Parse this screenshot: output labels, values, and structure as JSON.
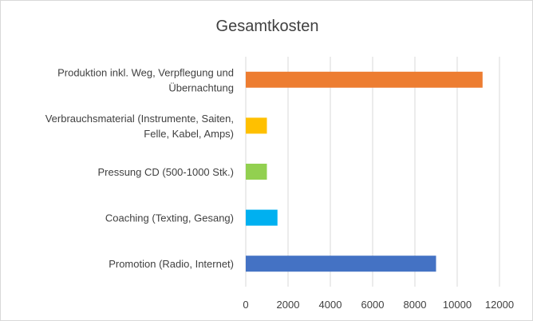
{
  "chart_data": {
    "type": "bar",
    "orientation": "horizontal",
    "title": "Gesamtkosten",
    "xlabel": "",
    "ylabel": "",
    "xlim": [
      0,
      12000
    ],
    "x_ticks": [
      0,
      2000,
      4000,
      6000,
      8000,
      10000,
      12000
    ],
    "x_tick_labels": [
      "0",
      "2000",
      "4000",
      "6000",
      "8000",
      "10000",
      "12000"
    ],
    "grid": "vertical",
    "legend": "none",
    "categories": [
      {
        "lines": [
          "Produktion inkl. Weg, Verpflegung und",
          "Übernachtung"
        ]
      },
      {
        "lines": [
          "Verbrauchsmaterial (Instrumente, Saiten,",
          "Felle, Kabel, Amps)"
        ]
      },
      {
        "lines": [
          "Pressung CD (500-1000 Stk.)"
        ]
      },
      {
        "lines": [
          "Coaching (Texting, Gesang)"
        ]
      },
      {
        "lines": [
          "Promotion (Radio, Internet)"
        ]
      }
    ],
    "values": [
      11200,
      1000,
      1000,
      1500,
      9000
    ],
    "colors": [
      "#ED7D31",
      "#FFC000",
      "#92D050",
      "#00B0F0",
      "#4472C4"
    ]
  }
}
